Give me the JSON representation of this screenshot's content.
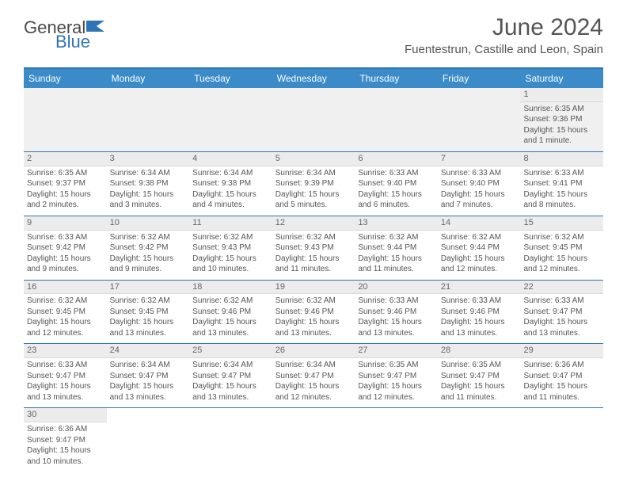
{
  "brand": {
    "part1": "General",
    "part2": "Blue"
  },
  "title": "June 2024",
  "location": "Fuentestrun, Castille and Leon, Spain",
  "colors": {
    "header_bg": "#3b8bc9",
    "border": "#2e75b6",
    "text": "#555555",
    "cell_bg_alt": "#f0f0f0",
    "daynum_bg": "#ececec"
  },
  "dayHeaders": [
    "Sunday",
    "Monday",
    "Tuesday",
    "Wednesday",
    "Thursday",
    "Friday",
    "Saturday"
  ],
  "weeks": [
    [
      null,
      null,
      null,
      null,
      null,
      null,
      {
        "n": "1",
        "sr": "6:35 AM",
        "ss": "9:36 PM",
        "dl": "15 hours and 1 minute."
      }
    ],
    [
      {
        "n": "2",
        "sr": "6:35 AM",
        "ss": "9:37 PM",
        "dl": "15 hours and 2 minutes."
      },
      {
        "n": "3",
        "sr": "6:34 AM",
        "ss": "9:38 PM",
        "dl": "15 hours and 3 minutes."
      },
      {
        "n": "4",
        "sr": "6:34 AM",
        "ss": "9:38 PM",
        "dl": "15 hours and 4 minutes."
      },
      {
        "n": "5",
        "sr": "6:34 AM",
        "ss": "9:39 PM",
        "dl": "15 hours and 5 minutes."
      },
      {
        "n": "6",
        "sr": "6:33 AM",
        "ss": "9:40 PM",
        "dl": "15 hours and 6 minutes."
      },
      {
        "n": "7",
        "sr": "6:33 AM",
        "ss": "9:40 PM",
        "dl": "15 hours and 7 minutes."
      },
      {
        "n": "8",
        "sr": "6:33 AM",
        "ss": "9:41 PM",
        "dl": "15 hours and 8 minutes."
      }
    ],
    [
      {
        "n": "9",
        "sr": "6:33 AM",
        "ss": "9:42 PM",
        "dl": "15 hours and 9 minutes."
      },
      {
        "n": "10",
        "sr": "6:32 AM",
        "ss": "9:42 PM",
        "dl": "15 hours and 9 minutes."
      },
      {
        "n": "11",
        "sr": "6:32 AM",
        "ss": "9:43 PM",
        "dl": "15 hours and 10 minutes."
      },
      {
        "n": "12",
        "sr": "6:32 AM",
        "ss": "9:43 PM",
        "dl": "15 hours and 11 minutes."
      },
      {
        "n": "13",
        "sr": "6:32 AM",
        "ss": "9:44 PM",
        "dl": "15 hours and 11 minutes."
      },
      {
        "n": "14",
        "sr": "6:32 AM",
        "ss": "9:44 PM",
        "dl": "15 hours and 12 minutes."
      },
      {
        "n": "15",
        "sr": "6:32 AM",
        "ss": "9:45 PM",
        "dl": "15 hours and 12 minutes."
      }
    ],
    [
      {
        "n": "16",
        "sr": "6:32 AM",
        "ss": "9:45 PM",
        "dl": "15 hours and 12 minutes."
      },
      {
        "n": "17",
        "sr": "6:32 AM",
        "ss": "9:45 PM",
        "dl": "15 hours and 13 minutes."
      },
      {
        "n": "18",
        "sr": "6:32 AM",
        "ss": "9:46 PM",
        "dl": "15 hours and 13 minutes."
      },
      {
        "n": "19",
        "sr": "6:32 AM",
        "ss": "9:46 PM",
        "dl": "15 hours and 13 minutes."
      },
      {
        "n": "20",
        "sr": "6:33 AM",
        "ss": "9:46 PM",
        "dl": "15 hours and 13 minutes."
      },
      {
        "n": "21",
        "sr": "6:33 AM",
        "ss": "9:46 PM",
        "dl": "15 hours and 13 minutes."
      },
      {
        "n": "22",
        "sr": "6:33 AM",
        "ss": "9:47 PM",
        "dl": "15 hours and 13 minutes."
      }
    ],
    [
      {
        "n": "23",
        "sr": "6:33 AM",
        "ss": "9:47 PM",
        "dl": "15 hours and 13 minutes."
      },
      {
        "n": "24",
        "sr": "6:34 AM",
        "ss": "9:47 PM",
        "dl": "15 hours and 13 minutes."
      },
      {
        "n": "25",
        "sr": "6:34 AM",
        "ss": "9:47 PM",
        "dl": "15 hours and 13 minutes."
      },
      {
        "n": "26",
        "sr": "6:34 AM",
        "ss": "9:47 PM",
        "dl": "15 hours and 12 minutes."
      },
      {
        "n": "27",
        "sr": "6:35 AM",
        "ss": "9:47 PM",
        "dl": "15 hours and 12 minutes."
      },
      {
        "n": "28",
        "sr": "6:35 AM",
        "ss": "9:47 PM",
        "dl": "15 hours and 11 minutes."
      },
      {
        "n": "29",
        "sr": "6:36 AM",
        "ss": "9:47 PM",
        "dl": "15 hours and 11 minutes."
      }
    ],
    [
      {
        "n": "30",
        "sr": "6:36 AM",
        "ss": "9:47 PM",
        "dl": "15 hours and 10 minutes."
      },
      null,
      null,
      null,
      null,
      null,
      null
    ]
  ],
  "labels": {
    "sunrise": "Sunrise:",
    "sunset": "Sunset:",
    "daylight": "Daylight:"
  }
}
